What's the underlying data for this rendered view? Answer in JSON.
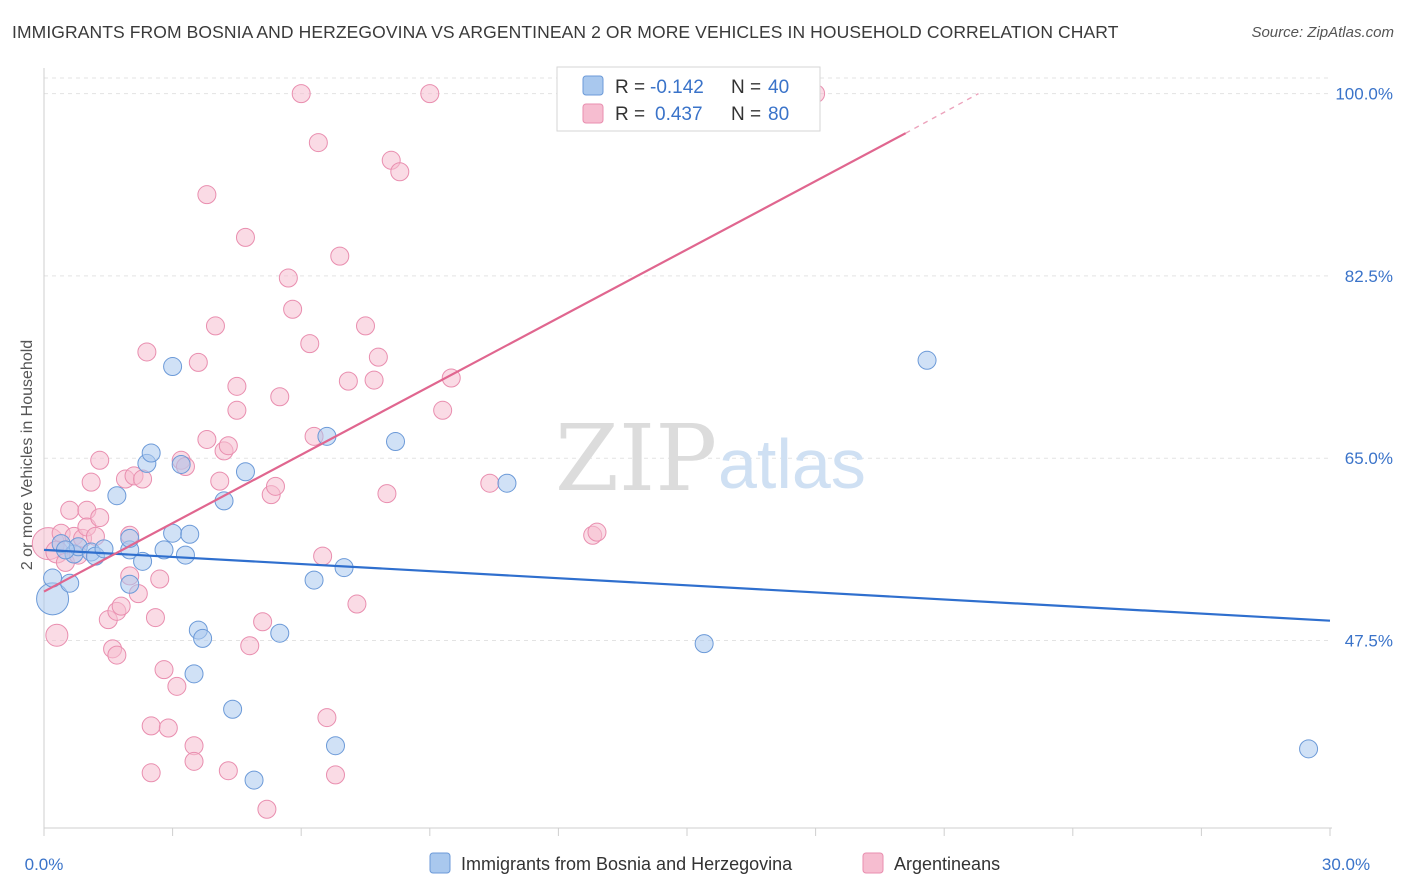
{
  "header": {
    "title": "IMMIGRANTS FROM BOSNIA AND HERZEGOVINA VS ARGENTINEAN 2 OR MORE VEHICLES IN HOUSEHOLD CORRELATION CHART",
    "source": "Source: ZipAtlas.com"
  },
  "watermark": {
    "zip": "ZIP",
    "atlas": "atlas"
  },
  "colors": {
    "blue": "#a9c8ee",
    "blue_stroke": "#6c9ad8",
    "blue_line": "#2f6fce",
    "pink": "#f6bdd0",
    "pink_stroke": "#e98eaf",
    "pink_line": "#e0668f",
    "tick_text": "#3a73c9"
  },
  "stats": [
    {
      "r_label": "R =",
      "r_value": "-0.142",
      "n_label": "N =",
      "n_value": "40"
    },
    {
      "r_label": "R =",
      "r_value": "0.437",
      "n_label": "N =",
      "n_value": "80"
    }
  ],
  "chart_data": {
    "type": "scatter",
    "title": "IMMIGRANTS FROM BOSNIA AND HERZEGOVINA VS ARGENTINEAN 2 OR MORE VEHICLES IN HOUSEHOLD CORRELATION CHART",
    "xlabel": "",
    "ylabel": "2 or more Vehicles in Household",
    "xlim": [
      0,
      30
    ],
    "ylim": [
      29.5,
      101.5
    ],
    "x_tick_labels": [
      "0.0%",
      "30.0%"
    ],
    "y_ticks": [
      47.5,
      65.0,
      82.5,
      100.0
    ],
    "y_tick_labels": [
      "47.5%",
      "65.0%",
      "82.5%",
      "100.0%"
    ],
    "grid": true,
    "legend_position": "bottom-center",
    "series": [
      {
        "name": "Immigrants from Bosnia and Herzegovina",
        "color": "blue",
        "trend": {
          "x": [
            0,
            30
          ],
          "y": [
            56.2,
            49.4
          ]
        },
        "points": [
          [
            0.2,
            51.5,
            16
          ],
          [
            0.2,
            53.5,
            9
          ],
          [
            0.4,
            56.8,
            9
          ],
          [
            0.6,
            53.0,
            9
          ],
          [
            0.7,
            55.8,
            9
          ],
          [
            0.8,
            56.5,
            9
          ],
          [
            1.1,
            56.0,
            9
          ],
          [
            1.2,
            55.6,
            9
          ],
          [
            1.4,
            56.3,
            9
          ],
          [
            1.7,
            61.4,
            9
          ],
          [
            2.0,
            56.2,
            9
          ],
          [
            2.0,
            52.9,
            9
          ],
          [
            2.0,
            57.3,
            9
          ],
          [
            2.3,
            55.1,
            9
          ],
          [
            2.4,
            64.5,
            9
          ],
          [
            2.5,
            65.5,
            9
          ],
          [
            2.8,
            56.2,
            9
          ],
          [
            3.0,
            57.8,
            9
          ],
          [
            3.0,
            73.8,
            9
          ],
          [
            3.2,
            64.4,
            9
          ],
          [
            3.3,
            55.7,
            9
          ],
          [
            3.4,
            57.7,
            9
          ],
          [
            3.5,
            44.3,
            9
          ],
          [
            3.6,
            48.5,
            9
          ],
          [
            3.7,
            47.7,
            9
          ],
          [
            4.2,
            60.9,
            9
          ],
          [
            4.4,
            40.9,
            9
          ],
          [
            4.7,
            63.7,
            9
          ],
          [
            4.9,
            34.1,
            9
          ],
          [
            5.5,
            48.2,
            9
          ],
          [
            6.3,
            53.3,
            9
          ],
          [
            6.6,
            67.1,
            9
          ],
          [
            6.8,
            37.4,
            9
          ],
          [
            7.0,
            54.5,
            9
          ],
          [
            8.2,
            66.6,
            9
          ],
          [
            10.8,
            62.6,
            9
          ],
          [
            15.4,
            47.2,
            9
          ],
          [
            20.6,
            74.4,
            9
          ],
          [
            29.5,
            37.1,
            9
          ],
          [
            0.5,
            56.2,
            9
          ]
        ]
      },
      {
        "name": "Argentineans",
        "color": "pink",
        "trend": {
          "x": [
            0,
            20.1
          ],
          "y": [
            52.2,
            96.2
          ]
        },
        "trend_dashed": {
          "x": [
            20.1,
            21.8
          ],
          "y": [
            96.2,
            100.0
          ]
        },
        "points": [
          [
            0.1,
            56.8,
            16
          ],
          [
            0.3,
            56.0,
            11
          ],
          [
            0.3,
            48.0,
            11
          ],
          [
            0.4,
            57.8,
            9
          ],
          [
            0.5,
            55.0,
            9
          ],
          [
            0.6,
            60.0,
            9
          ],
          [
            0.7,
            57.5,
            9
          ],
          [
            0.8,
            55.7,
            9
          ],
          [
            0.9,
            57.3,
            9
          ],
          [
            1.0,
            60.0,
            9
          ],
          [
            1.0,
            58.4,
            9
          ],
          [
            1.1,
            62.7,
            9
          ],
          [
            1.2,
            57.5,
            9
          ],
          [
            1.3,
            59.3,
            9
          ],
          [
            1.3,
            64.8,
            9
          ],
          [
            1.5,
            49.5,
            9
          ],
          [
            1.6,
            46.7,
            9
          ],
          [
            1.7,
            50.3,
            9
          ],
          [
            1.7,
            46.1,
            9
          ],
          [
            1.8,
            50.8,
            9
          ],
          [
            1.9,
            63.0,
            9
          ],
          [
            2.0,
            57.6,
            9
          ],
          [
            2.0,
            53.7,
            9
          ],
          [
            2.1,
            63.3,
            9
          ],
          [
            2.2,
            52.0,
            9
          ],
          [
            2.3,
            63.0,
            9
          ],
          [
            2.4,
            75.2,
            9
          ],
          [
            2.5,
            39.3,
            9
          ],
          [
            2.5,
            34.8,
            9
          ],
          [
            2.6,
            49.7,
            9
          ],
          [
            2.7,
            53.4,
            9
          ],
          [
            2.8,
            44.7,
            9
          ],
          [
            2.9,
            39.1,
            9
          ],
          [
            3.1,
            43.1,
            9
          ],
          [
            3.2,
            64.8,
            9
          ],
          [
            3.3,
            64.2,
            9
          ],
          [
            3.5,
            37.4,
            9
          ],
          [
            3.5,
            35.9,
            9
          ],
          [
            3.6,
            74.2,
            9
          ],
          [
            3.8,
            66.8,
            9
          ],
          [
            3.8,
            90.3,
            9
          ],
          [
            4.0,
            77.7,
            9
          ],
          [
            4.1,
            62.8,
            9
          ],
          [
            4.2,
            65.7,
            9
          ],
          [
            4.3,
            35.0,
            9
          ],
          [
            4.3,
            66.2,
            9
          ],
          [
            4.5,
            71.9,
            9
          ],
          [
            4.5,
            69.6,
            9
          ],
          [
            4.7,
            86.2,
            9
          ],
          [
            4.8,
            47.0,
            9
          ],
          [
            5.1,
            49.3,
            9
          ],
          [
            5.2,
            31.3,
            9
          ],
          [
            5.3,
            61.5,
            9
          ],
          [
            5.4,
            62.3,
            9
          ],
          [
            5.5,
            70.9,
            9
          ],
          [
            5.7,
            82.3,
            9
          ],
          [
            5.8,
            79.3,
            9
          ],
          [
            6.0,
            100.0,
            9
          ],
          [
            6.2,
            76.0,
            9
          ],
          [
            6.3,
            67.1,
            9
          ],
          [
            6.4,
            95.3,
            9
          ],
          [
            6.5,
            55.6,
            9
          ],
          [
            6.6,
            40.1,
            9
          ],
          [
            6.8,
            34.6,
            9
          ],
          [
            6.9,
            84.4,
            9
          ],
          [
            7.1,
            72.4,
            9
          ],
          [
            7.3,
            51.0,
            9
          ],
          [
            7.5,
            77.7,
            9
          ],
          [
            7.7,
            72.5,
            9
          ],
          [
            7.8,
            74.7,
            9
          ],
          [
            8.0,
            61.6,
            9
          ],
          [
            8.1,
            93.6,
            9
          ],
          [
            8.3,
            92.5,
            9
          ],
          [
            9.0,
            100.0,
            9
          ],
          [
            9.3,
            69.6,
            9
          ],
          [
            9.5,
            72.7,
            9
          ],
          [
            10.4,
            62.6,
            9
          ],
          [
            12.8,
            57.6,
            9
          ],
          [
            12.9,
            57.9,
            9
          ],
          [
            18.0,
            100.0,
            9
          ]
        ]
      }
    ]
  }
}
